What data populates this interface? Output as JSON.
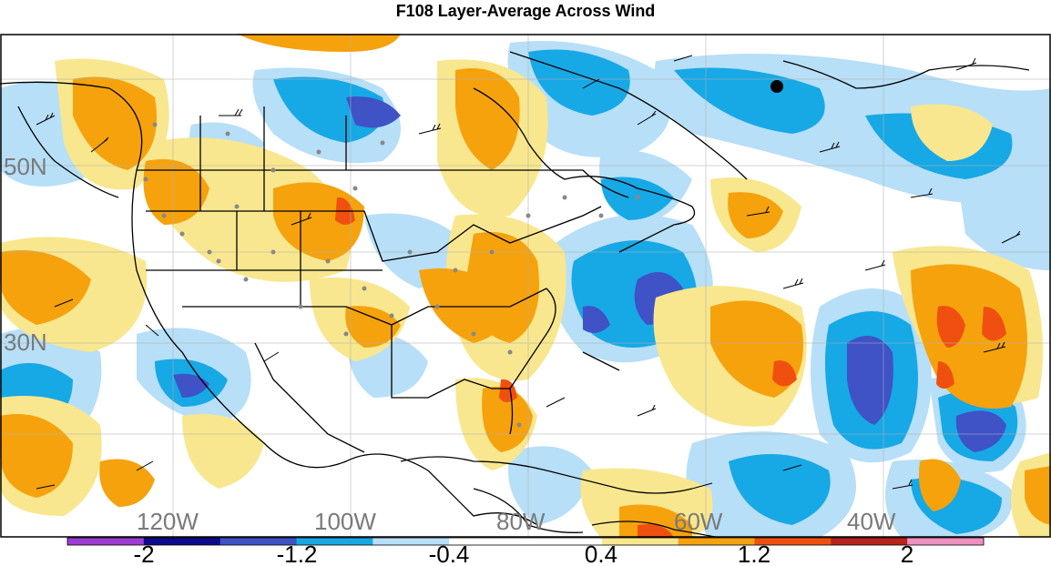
{
  "title": "F108 Layer-Average Across Wind",
  "map": {
    "latitude_labels": [
      "50N",
      "30N"
    ],
    "longitude_labels": [
      "120W",
      "100W",
      "80W",
      "60W",
      "40W"
    ]
  },
  "colorbar": {
    "colors": [
      "#9d3cd3",
      "#0b0b8c",
      "#3f52c6",
      "#17a8e6",
      "#b7dff7",
      "#ffffff",
      "#ffffff",
      "#f8e78e",
      "#f5a20d",
      "#f0500f",
      "#b8231c",
      "#ee8fc1"
    ],
    "tick_labels": [
      "-2",
      "-1.2",
      "-0.4",
      "0.4",
      "1.2",
      "2"
    ]
  },
  "palette": {
    "light_blue": "#b7dff7",
    "blue": "#17a8e6",
    "dark_blue": "#3f52c6",
    "light_orange": "#f8e78e",
    "orange": "#f5a20d",
    "red": "#f0500f"
  }
}
